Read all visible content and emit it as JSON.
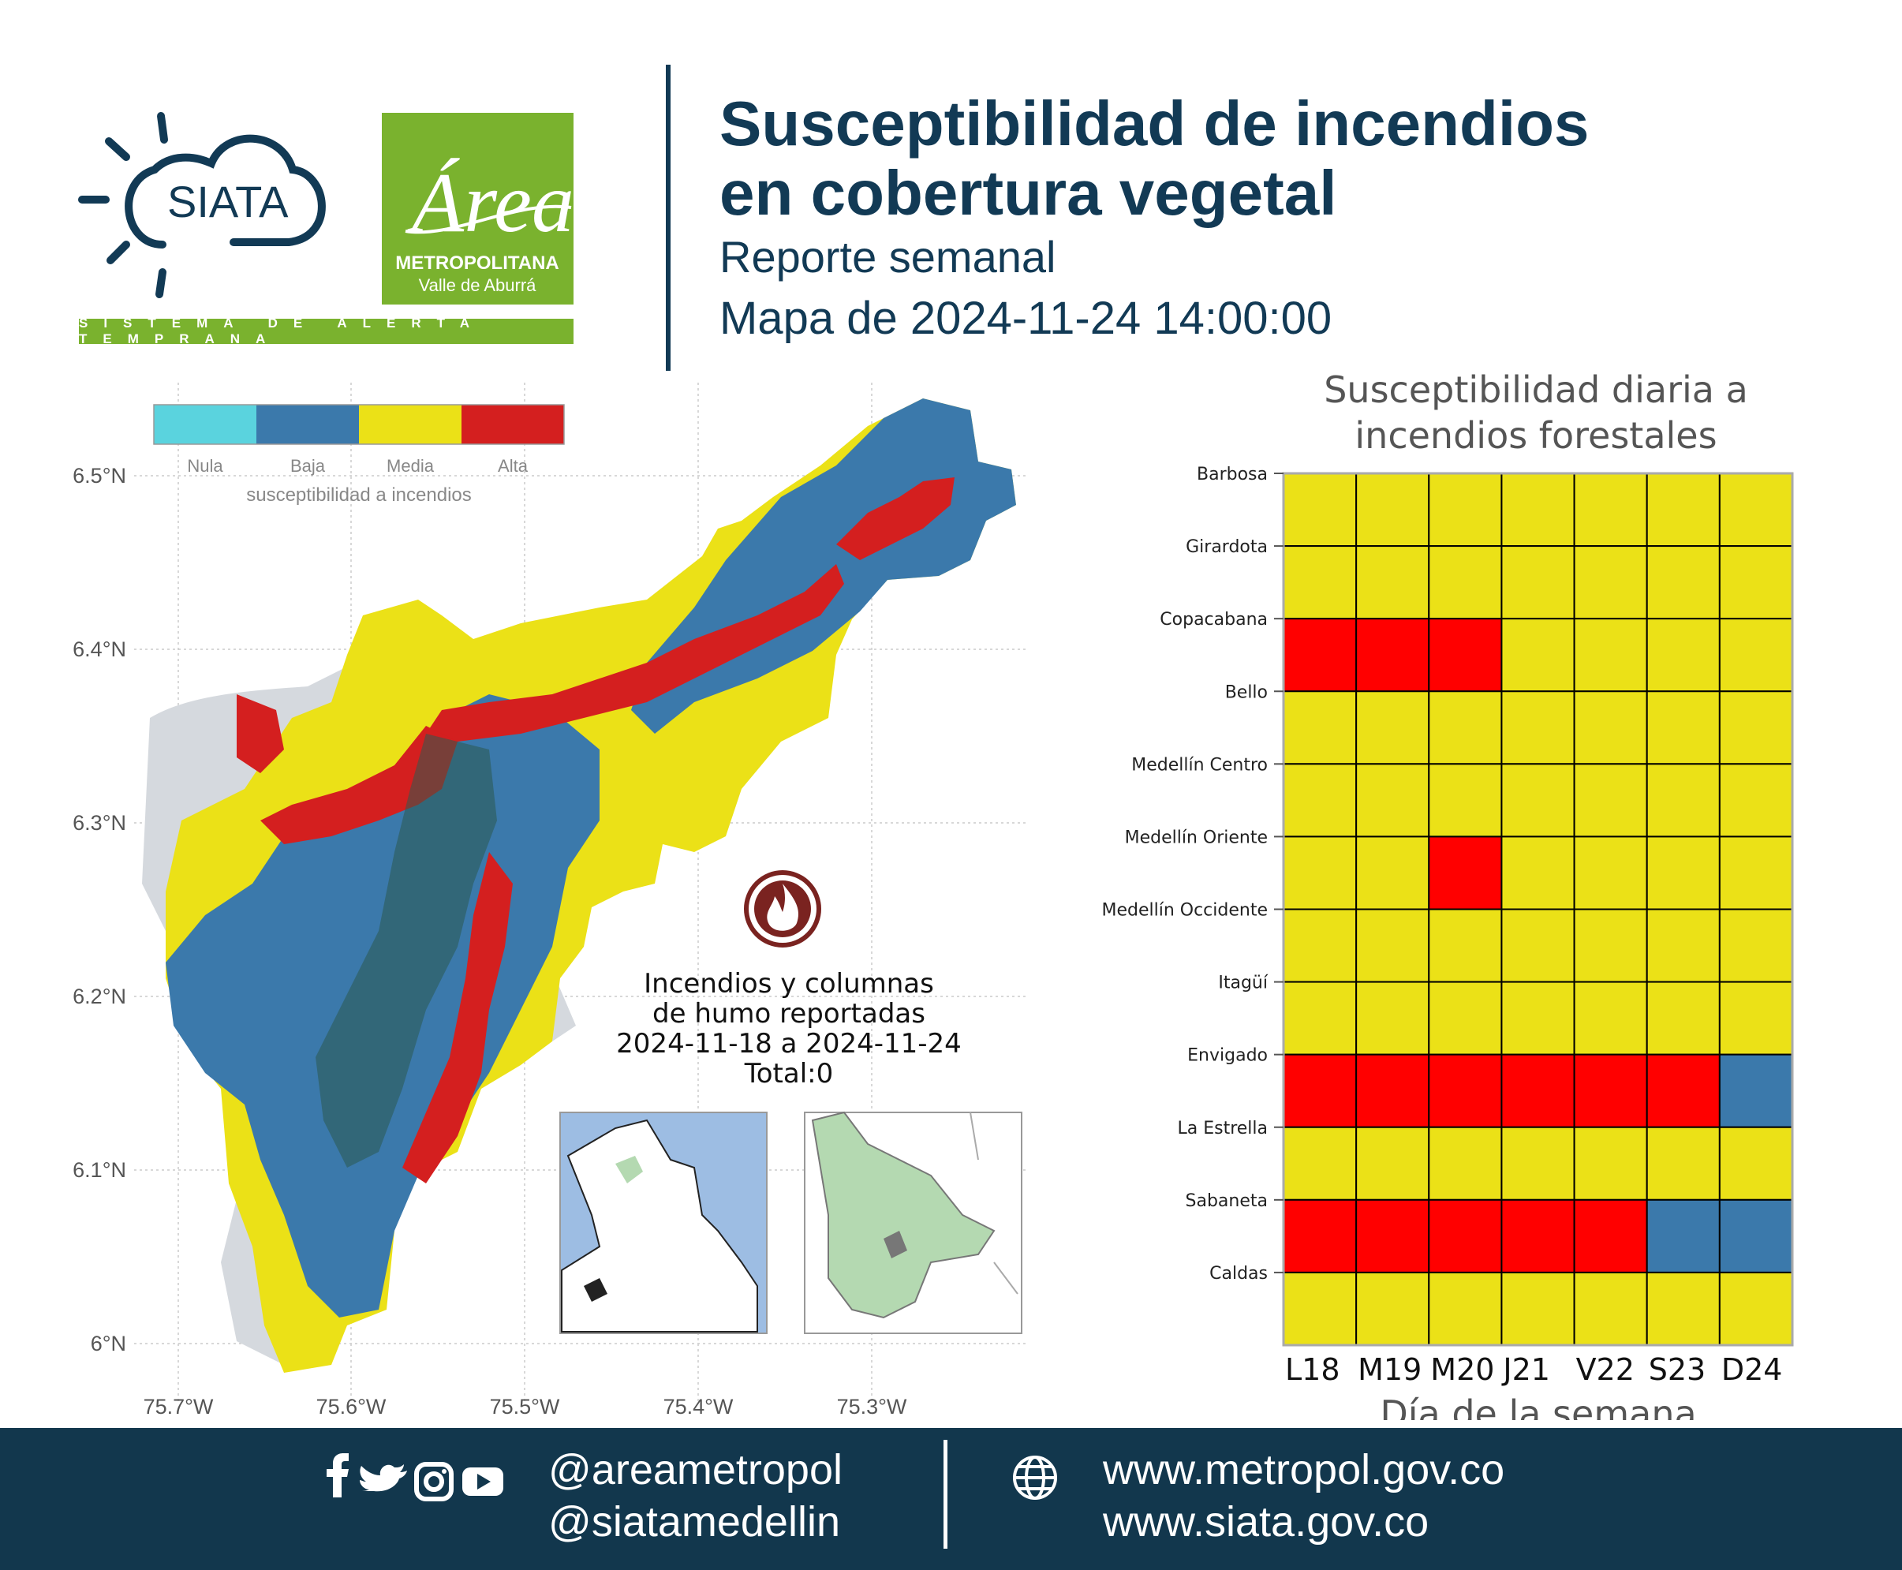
{
  "header": {
    "siata_logo_text": "SIATA",
    "area_logo_script": "Área",
    "area_logo_line1": "METROPOLITANA",
    "area_logo_line2": "Valle de Aburrá",
    "strip_text": "SISTEMA DE ALERTA TEMPRANA",
    "title_line1": "Susceptibilidad de incendios",
    "title_line2": "en cobertura vegetal",
    "subtitle": "Reporte semanal",
    "map_date": "Mapa de 2024-11-24 14:00:00"
  },
  "map": {
    "legend": {
      "items": [
        {
          "label": "Nula",
          "color": "#5ad3de"
        },
        {
          "label": "Baja",
          "color": "#3b79ab"
        },
        {
          "label": "Media",
          "color": "#ebe117"
        },
        {
          "label": "Alta",
          "color": "#d41f1f"
        }
      ],
      "caption": "susceptibilidad a incendios"
    },
    "lat_labels": [
      "6.5°N",
      "6.4°N",
      "6.3°N",
      "6.2°N",
      "6.1°N",
      "6°N"
    ],
    "lon_labels": [
      "75.7°W",
      "75.6°W",
      "75.5°W",
      "75.4°W",
      "75.3°W"
    ],
    "fire_icon": "fire-icon",
    "fires_text": {
      "line1": "Incendios y columnas",
      "line2": "de humo reportadas",
      "line3": "2024-11-18 a 2024-11-24",
      "line4": "Total:0"
    },
    "colors": {
      "outside": "#d5d9de",
      "ocean": "#9dbde3",
      "region_green": "#b4d9b1",
      "cell_value": "#2c5a4f"
    }
  },
  "chart_data": {
    "type": "heatmap",
    "title": "Susceptibilidad diaria a incendios forestales",
    "xlabel": "Día de la semana",
    "ylabel": "",
    "x": [
      "L18",
      "M19",
      "M20",
      "J21",
      "V22",
      "S23",
      "D24"
    ],
    "y": [
      "Barbosa",
      "Girardota",
      "Copacabana",
      "Bello",
      "Medellín Centro",
      "Medellín Oriente",
      "Medellín Occidente",
      "Itagüí",
      "Envigado",
      "La Estrella",
      "Sabaneta",
      "Caldas"
    ],
    "value_labels": {
      "Baja": "#3b79ab",
      "Media": "#ebe117",
      "Alta": "#ff0000"
    },
    "values": [
      [
        "Media",
        "Media",
        "Media",
        "Media",
        "Media",
        "Media",
        "Media"
      ],
      [
        "Media",
        "Media",
        "Media",
        "Media",
        "Media",
        "Media",
        "Media"
      ],
      [
        "Alta",
        "Alta",
        "Alta",
        "Media",
        "Media",
        "Media",
        "Media"
      ],
      [
        "Media",
        "Media",
        "Media",
        "Media",
        "Media",
        "Media",
        "Media"
      ],
      [
        "Media",
        "Media",
        "Media",
        "Media",
        "Media",
        "Media",
        "Media"
      ],
      [
        "Media",
        "Media",
        "Alta",
        "Media",
        "Media",
        "Media",
        "Media"
      ],
      [
        "Media",
        "Media",
        "Media",
        "Media",
        "Media",
        "Media",
        "Media"
      ],
      [
        "Media",
        "Media",
        "Media",
        "Media",
        "Media",
        "Media",
        "Media"
      ],
      [
        "Alta",
        "Alta",
        "Alta",
        "Alta",
        "Alta",
        "Alta",
        "Baja"
      ],
      [
        "Media",
        "Media",
        "Media",
        "Media",
        "Media",
        "Media",
        "Media"
      ],
      [
        "Alta",
        "Alta",
        "Alta",
        "Alta",
        "Alta",
        "Baja",
        "Baja"
      ],
      [
        "Media",
        "Media",
        "Media",
        "Media",
        "Media",
        "Media",
        "Media"
      ]
    ]
  },
  "footer": {
    "social_icons": [
      "facebook-icon",
      "twitter-icon",
      "instagram-icon",
      "youtube-icon"
    ],
    "handle1": "@areametropol",
    "handle2": "@siatamedellin",
    "web_icon": "globe-icon",
    "url1": "www.metropol.gov.co",
    "url2": "www.siata.gov.co"
  }
}
